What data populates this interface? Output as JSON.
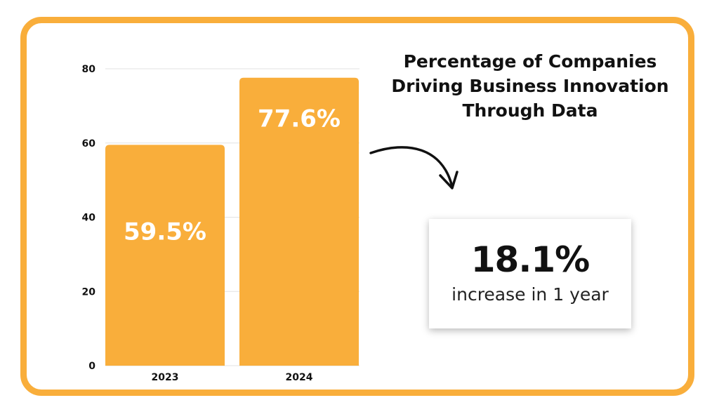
{
  "chart_data": {
    "type": "bar",
    "title": "Percentage of Companies Driving Business Innovation Through Data",
    "title_lines": [
      "Percentage of Companies",
      "Driving Business Innovation",
      "Through Data"
    ],
    "categories": [
      "2023",
      "2024"
    ],
    "values": [
      59.5,
      77.6
    ],
    "data_labels": [
      "59.5%",
      "77.6%"
    ],
    "xlabel": "",
    "ylabel": "",
    "ylim": [
      0,
      80
    ],
    "yticks": [
      "0",
      "20",
      "40",
      "60",
      "80"
    ],
    "grid": true,
    "bar_color": "#F9AE3B"
  },
  "callout": {
    "value": "18.1%",
    "caption": "increase in 1 year"
  },
  "colors": {
    "frame": "#F9AE3B",
    "bar": "#F9AE3B",
    "grid": "#E2E2E2",
    "text": "#111111"
  }
}
